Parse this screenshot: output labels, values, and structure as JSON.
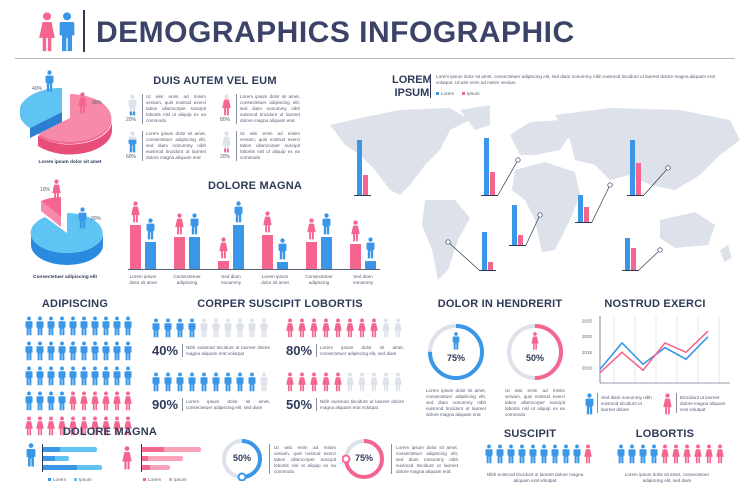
{
  "title": "DEMOGRAPHICS INFOGRAPHIC",
  "colors": {
    "blue": "#3a97e8",
    "light_blue": "#5fc3f3",
    "pink": "#f4668f",
    "light_pink": "#f9a3bb",
    "gray": "#dde1ea",
    "text": "#2f3a5a"
  },
  "pie1": {
    "caption": "Lorem ipsum dolor sit amet",
    "male_pct": "40%",
    "female_pct": "60%"
  },
  "pie2": {
    "caption": "Consectetuer adipiscing elit",
    "female_pct": "10%",
    "male_pct": "90%"
  },
  "duis": {
    "title": "DUIS AUTEM VEL EUM",
    "items": [
      {
        "gender": "male",
        "pct": "20%",
        "fill": 20,
        "text": "Ut wisi enim ad minim veniam, quis nostrud exerci tation ullamcorper suscipit lobortis nisl ut aliquip ex ea commodo"
      },
      {
        "gender": "female",
        "pct": "80%",
        "fill": 80,
        "text": "Lorem ipsum dolor sit amet, consectetuer adipiscing elit, sed diam nonummy nibh euismod tincidunt ut laoreet dolore magna aliquam erat"
      },
      {
        "gender": "male",
        "pct": "60%",
        "fill": 60,
        "text": "Lorem ipsum dolor sit amet, consectetuer adipiscing elit, sed diam nonummy nibh euismod tincidunt ut laoreet dolore magna aliquam erat"
      },
      {
        "gender": "female",
        "pct": "20%",
        "fill": 20,
        "text": "Ut wisi enim ad minim veniam, quis nostrud exerci tation ullamcorper suscipit lobortis nisl ut aliquip ex ea commodo"
      }
    ]
  },
  "dolore_bars": {
    "title": "DOLORE MAGNA",
    "groups": [
      {
        "label": [
          "Lorem ipsum",
          "dolor sit amet"
        ],
        "female": 44,
        "male": 27
      },
      {
        "label": [
          "Consectetuer",
          "adipiscing"
        ],
        "female": 32,
        "male": 32
      },
      {
        "label": [
          "Sed diam",
          "nonummy"
        ],
        "female": 8,
        "male": 44
      },
      {
        "label": [
          "Lorem ipsum",
          "dolor sit amet"
        ],
        "female": 34,
        "male": 7
      },
      {
        "label": [
          "Consectetuer",
          "adipiscing"
        ],
        "female": 27,
        "male": 32
      },
      {
        "label": [
          "Sed diam",
          "nonummy"
        ],
        "female": 25,
        "male": 8
      }
    ]
  },
  "map": {
    "title_line1": "LOREM",
    "title_line2": "IPSUM",
    "text": "Lorem ipsum dolor sit amet, consectetuer adipiscing elit, sed diam nonummy nibh euismod tincidunt ut laoreet dolore magna aliquam erat volutpat. Ut wisi enim ad minim veniam.",
    "legend": [
      "Lorem",
      "Ipsum"
    ],
    "markers": [
      {
        "lorem": 55,
        "ipsum": 20
      },
      {
        "lorem": 57,
        "ipsum": 23
      },
      {
        "lorem": 27,
        "ipsum": 15
      },
      {
        "lorem": 55,
        "ipsum": 32
      },
      {
        "lorem": 38,
        "ipsum": 8
      },
      {
        "lorem": 40,
        "ipsum": 10
      },
      {
        "lorem": 32,
        "ipsum": 22
      }
    ]
  },
  "adipiscing": {
    "title": "ADIPISCING",
    "men": 34,
    "women": 16
  },
  "corper": {
    "title": "CORPER SUSCIPIT LOBORTIS",
    "items": [
      {
        "gender": "male",
        "count": 4,
        "pct": "40%",
        "text": "Nibh euismod tincidunt ut laoreet dolore magna aliquam erat volutpat"
      },
      {
        "gender": "female",
        "count": 8,
        "pct": "80%",
        "text": "Lorem ipsum dolor sit amet, consectetuer adipiscing elit, sed diam"
      },
      {
        "gender": "male",
        "count": 9,
        "pct": "90%",
        "text": "Lorem ipsum dolor sit amet, consectetuer adipiscing elit, sed diam"
      },
      {
        "gender": "female",
        "count": 5,
        "pct": "50%",
        "text": "Nibh euismod tincidunt ut laoreet dolore magna aliquam erat volutpat"
      }
    ]
  },
  "hendrerit": {
    "title": "DOLOR IN HENDRERIT",
    "items": [
      {
        "gender": "male",
        "value": 75,
        "pct": "75%",
        "text": "Lorem ipsum dolor sit amet, consectetuer adipiscing elit, sed diam nonummy nibh euismod tincidunt ut laoreet dolore magna aliquam erat"
      },
      {
        "gender": "female",
        "value": 50,
        "pct": "50%",
        "text": "Ut wisi enim ad minim veniam, quis nostrud exerci tation ullamcorper suscipit lobortis nisl ut aliquip ex ea commodo"
      }
    ]
  },
  "nostrud": {
    "title": "NOSTRUD EXERCI",
    "y_ticks": [
      "2025",
      "2020",
      "2015",
      "2010"
    ],
    "ylim": [
      2010,
      2025
    ],
    "male_series": [
      2009.6,
      2018,
      2011.2,
      2016.5,
      2012.8,
      2020
    ],
    "female_series": [
      2008.5,
      2015,
      2009.3,
      2018,
      2015,
      2021.8
    ],
    "male_text": "Sed diam nonummy nibh euismod tincidunt ut laoreet dolore",
    "female_text": "Eincidunt ut laoreet dolore magna aliquam erat volutpat"
  },
  "dolore_h": {
    "title": "DOLORE MAGNA",
    "male_rows": [
      [
        17,
        37
      ],
      [
        12,
        14
      ],
      [
        34,
        25
      ]
    ],
    "female_rows": [
      [
        22,
        37
      ],
      [
        6,
        35
      ],
      [
        8,
        20
      ]
    ],
    "legend": [
      "Lorem",
      "Ipsum"
    ]
  },
  "rings": [
    {
      "value": 50,
      "pct": "50%",
      "color": "blue",
      "text": "Ut wisi enim ad minim veniam, quis nostrud exerci tation ullamcorper suscipit lobortis nisl ut aliquip ex ea commodo"
    },
    {
      "value": 75,
      "pct": "75%",
      "color": "pink",
      "text": "Lorem ipsum dolor sit amet, consectetuer adipiscing elit, sed diam nonummy nibh euismod tincidunt ut laoreet dolore magna aliquam erat"
    }
  ],
  "suscipit": {
    "title": "SUSCIPIT",
    "men": 9,
    "women": 1,
    "text": "Nibh euismod tincidunt ut laoreet dolore magna aliquam erat volutpat"
  },
  "lobortis": {
    "title": "LOBORTIS",
    "men": 4,
    "women": 6,
    "text": "Lorem ipsum dolor sit amet, consectetuer adipiscing elit, sed diam"
  }
}
